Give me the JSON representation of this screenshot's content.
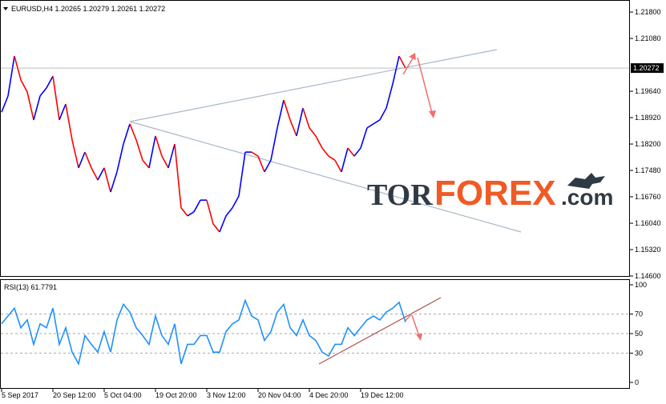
{
  "chart_data": [
    {
      "type": "price-line",
      "title": "EURUSD,H4 1.20265 1.20279 1.20261 1.20272",
      "up_color": "#0000ff",
      "down_color": "#ff0000",
      "values": [
        1.1907,
        1.1951,
        1.206,
        1.1995,
        1.1962,
        1.1886,
        1.1951,
        1.1973,
        1.2005,
        1.1886,
        1.1929,
        1.1831,
        1.1755,
        1.1798,
        1.1755,
        1.1722,
        1.1755,
        1.1689,
        1.1744,
        1.182,
        1.1875,
        1.1831,
        1.1776,
        1.1755,
        1.1842,
        1.1787,
        1.1755,
        1.182,
        1.1646,
        1.1624,
        1.1635,
        1.1667,
        1.1667,
        1.1602,
        1.158,
        1.1624,
        1.1646,
        1.1678,
        1.1798,
        1.1798,
        1.1787,
        1.1744,
        1.1776,
        1.1864,
        1.194,
        1.1886,
        1.1842,
        1.1918,
        1.1864,
        1.1842,
        1.1809,
        1.1787,
        1.1776,
        1.1744,
        1.1809,
        1.1787,
        1.1809,
        1.1864,
        1.1875,
        1.1886,
        1.1918,
        1.1984,
        1.206,
        1.2027
      ],
      "xlim": [
        0,
        98
      ],
      "ylim": [
        1.146,
        1.2202
      ],
      "yticks": [
        {
          "value": 1.218,
          "label": "1.21800"
        },
        {
          "value": 1.2108,
          "label": "1.21080"
        },
        {
          "value": 1.1964,
          "label": "1.19640"
        },
        {
          "value": 1.1892,
          "label": "1.18920"
        },
        {
          "value": 1.182,
          "label": "1.18200"
        },
        {
          "value": 1.1748,
          "label": "1.17480"
        },
        {
          "value": 1.1676,
          "label": "1.16760"
        },
        {
          "value": 1.1604,
          "label": "1.16040"
        },
        {
          "value": 1.1532,
          "label": "1.15320"
        },
        {
          "value": 1.146,
          "label": "1.14600"
        }
      ],
      "current": {
        "value": 1.20272,
        "label": "1.20272"
      },
      "watermark": [
        "TOR",
        "FOREX",
        ".com"
      ]
    },
    {
      "type": "rsi-line",
      "title": "RSI(13) 61.7791",
      "color": "#1e90ff",
      "values": [
        60,
        68,
        76,
        56,
        64,
        39,
        60,
        56,
        76,
        39,
        56,
        31,
        19,
        48,
        39,
        31,
        52,
        31,
        64,
        80,
        72,
        56,
        48,
        39,
        68,
        48,
        39,
        60,
        19,
        39,
        39,
        48,
        48,
        31,
        31,
        52,
        60,
        64,
        84,
        68,
        64,
        43,
        52,
        72,
        80,
        56,
        48,
        64,
        48,
        43,
        31,
        27,
        39,
        39,
        56,
        48,
        56,
        64,
        68,
        64,
        72,
        76,
        82,
        61.7791
      ],
      "xlim": [
        0,
        98
      ],
      "ylim": [
        0,
        100
      ],
      "yticks": [
        100,
        70,
        50,
        30,
        0
      ],
      "xticks": [
        {
          "value": 0,
          "label": "5 Sep 2017"
        },
        {
          "value": 8,
          "label": "20 Sep 12:00"
        },
        {
          "value": 16,
          "label": "5 Oct 04:00"
        },
        {
          "value": 24,
          "label": "19 Oct 20:00"
        },
        {
          "value": 32,
          "label": "3 Nov 12:00"
        },
        {
          "value": 40,
          "label": "20 Nov 04:00"
        },
        {
          "value": 48,
          "label": "4 Dec 20:00"
        },
        {
          "value": 56,
          "label": "19 Dec 12:00"
        }
      ]
    }
  ]
}
